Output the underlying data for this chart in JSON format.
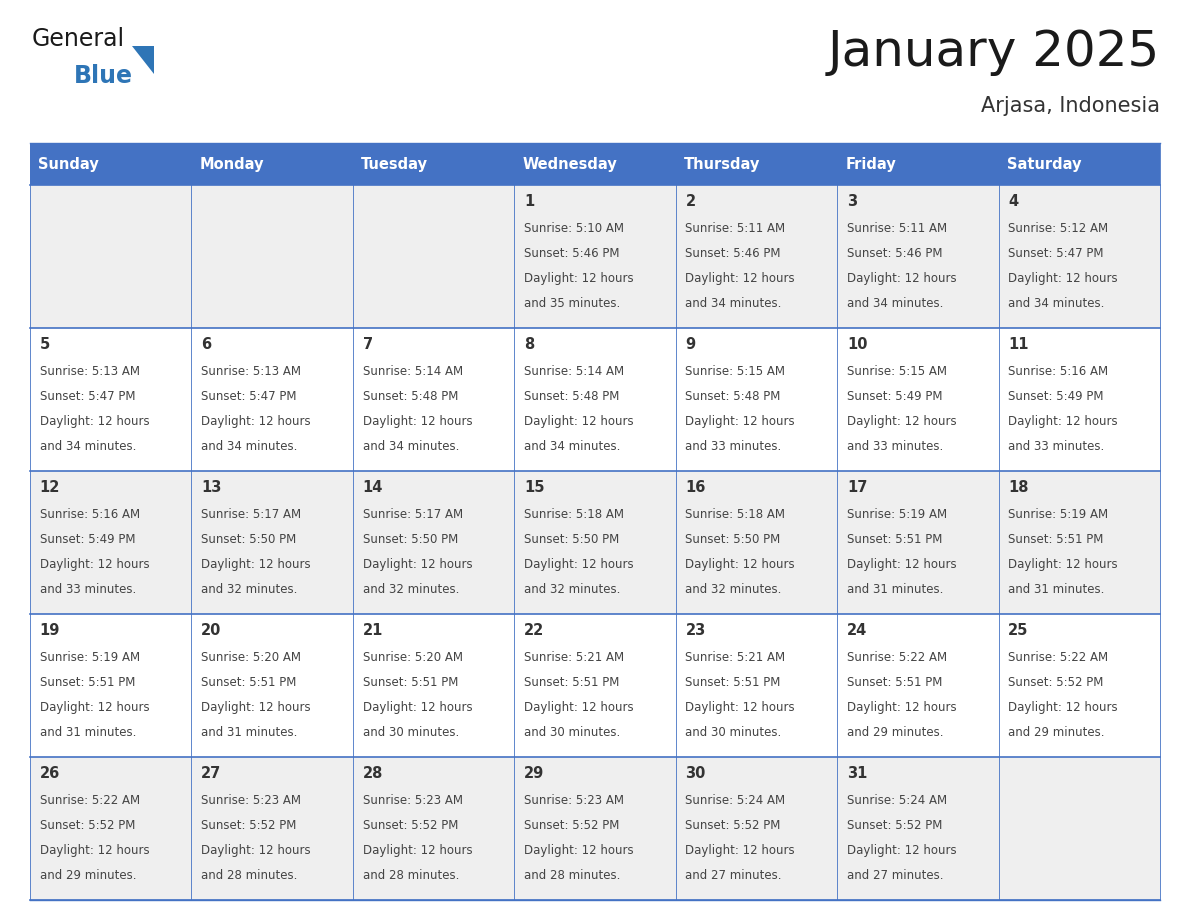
{
  "title": "January 2025",
  "subtitle": "Arjasa, Indonesia",
  "days_of_week": [
    "Sunday",
    "Monday",
    "Tuesday",
    "Wednesday",
    "Thursday",
    "Friday",
    "Saturday"
  ],
  "header_bg": "#4472C4",
  "header_text_color": "#FFFFFF",
  "row_bg_gray": "#EFEFEF",
  "row_bg_white": "#FFFFFF",
  "cell_border_color": "#4472C4",
  "day_number_color": "#333333",
  "text_color": "#444444",
  "title_color": "#1a1a1a",
  "subtitle_color": "#333333",
  "logo_general_color": "#1a1a1a",
  "logo_blue_color": "#2E75B6",
  "calendar_data": [
    {
      "day": 1,
      "col": 3,
      "row": 0,
      "sunrise": "5:10 AM",
      "sunset": "5:46 PM",
      "daylight_line1": "Daylight: 12 hours",
      "daylight_line2": "and 35 minutes."
    },
    {
      "day": 2,
      "col": 4,
      "row": 0,
      "sunrise": "5:11 AM",
      "sunset": "5:46 PM",
      "daylight_line1": "Daylight: 12 hours",
      "daylight_line2": "and 34 minutes."
    },
    {
      "day": 3,
      "col": 5,
      "row": 0,
      "sunrise": "5:11 AM",
      "sunset": "5:46 PM",
      "daylight_line1": "Daylight: 12 hours",
      "daylight_line2": "and 34 minutes."
    },
    {
      "day": 4,
      "col": 6,
      "row": 0,
      "sunrise": "5:12 AM",
      "sunset": "5:47 PM",
      "daylight_line1": "Daylight: 12 hours",
      "daylight_line2": "and 34 minutes."
    },
    {
      "day": 5,
      "col": 0,
      "row": 1,
      "sunrise": "5:13 AM",
      "sunset": "5:47 PM",
      "daylight_line1": "Daylight: 12 hours",
      "daylight_line2": "and 34 minutes."
    },
    {
      "day": 6,
      "col": 1,
      "row": 1,
      "sunrise": "5:13 AM",
      "sunset": "5:47 PM",
      "daylight_line1": "Daylight: 12 hours",
      "daylight_line2": "and 34 minutes."
    },
    {
      "day": 7,
      "col": 2,
      "row": 1,
      "sunrise": "5:14 AM",
      "sunset": "5:48 PM",
      "daylight_line1": "Daylight: 12 hours",
      "daylight_line2": "and 34 minutes."
    },
    {
      "day": 8,
      "col": 3,
      "row": 1,
      "sunrise": "5:14 AM",
      "sunset": "5:48 PM",
      "daylight_line1": "Daylight: 12 hours",
      "daylight_line2": "and 34 minutes."
    },
    {
      "day": 9,
      "col": 4,
      "row": 1,
      "sunrise": "5:15 AM",
      "sunset": "5:48 PM",
      "daylight_line1": "Daylight: 12 hours",
      "daylight_line2": "and 33 minutes."
    },
    {
      "day": 10,
      "col": 5,
      "row": 1,
      "sunrise": "5:15 AM",
      "sunset": "5:49 PM",
      "daylight_line1": "Daylight: 12 hours",
      "daylight_line2": "and 33 minutes."
    },
    {
      "day": 11,
      "col": 6,
      "row": 1,
      "sunrise": "5:16 AM",
      "sunset": "5:49 PM",
      "daylight_line1": "Daylight: 12 hours",
      "daylight_line2": "and 33 minutes."
    },
    {
      "day": 12,
      "col": 0,
      "row": 2,
      "sunrise": "5:16 AM",
      "sunset": "5:49 PM",
      "daylight_line1": "Daylight: 12 hours",
      "daylight_line2": "and 33 minutes."
    },
    {
      "day": 13,
      "col": 1,
      "row": 2,
      "sunrise": "5:17 AM",
      "sunset": "5:50 PM",
      "daylight_line1": "Daylight: 12 hours",
      "daylight_line2": "and 32 minutes."
    },
    {
      "day": 14,
      "col": 2,
      "row": 2,
      "sunrise": "5:17 AM",
      "sunset": "5:50 PM",
      "daylight_line1": "Daylight: 12 hours",
      "daylight_line2": "and 32 minutes."
    },
    {
      "day": 15,
      "col": 3,
      "row": 2,
      "sunrise": "5:18 AM",
      "sunset": "5:50 PM",
      "daylight_line1": "Daylight: 12 hours",
      "daylight_line2": "and 32 minutes."
    },
    {
      "day": 16,
      "col": 4,
      "row": 2,
      "sunrise": "5:18 AM",
      "sunset": "5:50 PM",
      "daylight_line1": "Daylight: 12 hours",
      "daylight_line2": "and 32 minutes."
    },
    {
      "day": 17,
      "col": 5,
      "row": 2,
      "sunrise": "5:19 AM",
      "sunset": "5:51 PM",
      "daylight_line1": "Daylight: 12 hours",
      "daylight_line2": "and 31 minutes."
    },
    {
      "day": 18,
      "col": 6,
      "row": 2,
      "sunrise": "5:19 AM",
      "sunset": "5:51 PM",
      "daylight_line1": "Daylight: 12 hours",
      "daylight_line2": "and 31 minutes."
    },
    {
      "day": 19,
      "col": 0,
      "row": 3,
      "sunrise": "5:19 AM",
      "sunset": "5:51 PM",
      "daylight_line1": "Daylight: 12 hours",
      "daylight_line2": "and 31 minutes."
    },
    {
      "day": 20,
      "col": 1,
      "row": 3,
      "sunrise": "5:20 AM",
      "sunset": "5:51 PM",
      "daylight_line1": "Daylight: 12 hours",
      "daylight_line2": "and 31 minutes."
    },
    {
      "day": 21,
      "col": 2,
      "row": 3,
      "sunrise": "5:20 AM",
      "sunset": "5:51 PM",
      "daylight_line1": "Daylight: 12 hours",
      "daylight_line2": "and 30 minutes."
    },
    {
      "day": 22,
      "col": 3,
      "row": 3,
      "sunrise": "5:21 AM",
      "sunset": "5:51 PM",
      "daylight_line1": "Daylight: 12 hours",
      "daylight_line2": "and 30 minutes."
    },
    {
      "day": 23,
      "col": 4,
      "row": 3,
      "sunrise": "5:21 AM",
      "sunset": "5:51 PM",
      "daylight_line1": "Daylight: 12 hours",
      "daylight_line2": "and 30 minutes."
    },
    {
      "day": 24,
      "col": 5,
      "row": 3,
      "sunrise": "5:22 AM",
      "sunset": "5:51 PM",
      "daylight_line1": "Daylight: 12 hours",
      "daylight_line2": "and 29 minutes."
    },
    {
      "day": 25,
      "col": 6,
      "row": 3,
      "sunrise": "5:22 AM",
      "sunset": "5:52 PM",
      "daylight_line1": "Daylight: 12 hours",
      "daylight_line2": "and 29 minutes."
    },
    {
      "day": 26,
      "col": 0,
      "row": 4,
      "sunrise": "5:22 AM",
      "sunset": "5:52 PM",
      "daylight_line1": "Daylight: 12 hours",
      "daylight_line2": "and 29 minutes."
    },
    {
      "day": 27,
      "col": 1,
      "row": 4,
      "sunrise": "5:23 AM",
      "sunset": "5:52 PM",
      "daylight_line1": "Daylight: 12 hours",
      "daylight_line2": "and 28 minutes."
    },
    {
      "day": 28,
      "col": 2,
      "row": 4,
      "sunrise": "5:23 AM",
      "sunset": "5:52 PM",
      "daylight_line1": "Daylight: 12 hours",
      "daylight_line2": "and 28 minutes."
    },
    {
      "day": 29,
      "col": 3,
      "row": 4,
      "sunrise": "5:23 AM",
      "sunset": "5:52 PM",
      "daylight_line1": "Daylight: 12 hours",
      "daylight_line2": "and 28 minutes."
    },
    {
      "day": 30,
      "col": 4,
      "row": 4,
      "sunrise": "5:24 AM",
      "sunset": "5:52 PM",
      "daylight_line1": "Daylight: 12 hours",
      "daylight_line2": "and 27 minutes."
    },
    {
      "day": 31,
      "col": 5,
      "row": 4,
      "sunrise": "5:24 AM",
      "sunset": "5:52 PM",
      "daylight_line1": "Daylight: 12 hours",
      "daylight_line2": "and 27 minutes."
    }
  ]
}
